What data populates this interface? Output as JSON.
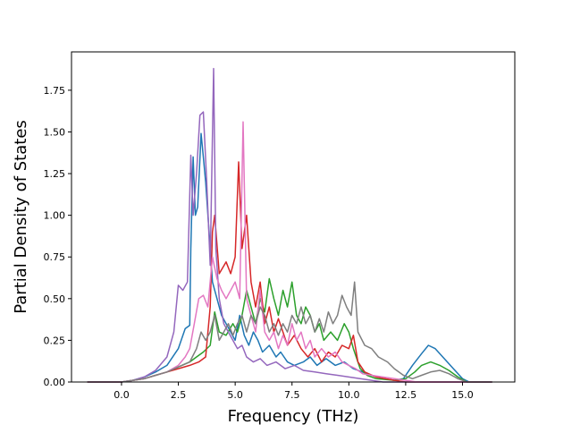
{
  "chart_data": {
    "type": "line",
    "title": "",
    "xlabel": "Frequency (THz)",
    "ylabel": "Partial Density of States",
    "xlim": [
      -2.2,
      17.3
    ],
    "ylim": [
      0,
      1.98
    ],
    "xticks": [
      0,
      2.5,
      5,
      7.5,
      10,
      12.5,
      15
    ],
    "xtick_labels": [
      "0.0",
      "2.5",
      "5.0",
      "7.5",
      "10.0",
      "12.5",
      "15.0"
    ],
    "yticks": [
      0,
      0.25,
      0.5,
      0.75,
      1.0,
      1.25,
      1.5,
      1.75
    ],
    "ytick_labels": [
      "0.00",
      "0.25",
      "0.50",
      "0.75",
      "1.00",
      "1.25",
      "1.50",
      "1.75"
    ],
    "grid": false,
    "series": [
      {
        "color": "#1f77b4",
        "points": [
          [
            -1.5,
            0
          ],
          [
            0,
            0
          ],
          [
            0.5,
            0.01
          ],
          [
            1,
            0.03
          ],
          [
            1.5,
            0.06
          ],
          [
            2,
            0.1
          ],
          [
            2.5,
            0.2
          ],
          [
            2.8,
            0.32
          ],
          [
            3.0,
            0.34
          ],
          [
            3.05,
            0.8
          ],
          [
            3.15,
            1.35
          ],
          [
            3.25,
            1.0
          ],
          [
            3.35,
            1.05
          ],
          [
            3.5,
            1.49
          ],
          [
            3.6,
            1.35
          ],
          [
            3.7,
            1.2
          ],
          [
            3.9,
            0.8
          ],
          [
            4.0,
            0.6
          ],
          [
            4.2,
            0.5
          ],
          [
            4.4,
            0.4
          ],
          [
            4.6,
            0.35
          ],
          [
            4.8,
            0.3
          ],
          [
            5.0,
            0.25
          ],
          [
            5.2,
            0.4
          ],
          [
            5.4,
            0.28
          ],
          [
            5.6,
            0.22
          ],
          [
            5.8,
            0.3
          ],
          [
            6.0,
            0.25
          ],
          [
            6.2,
            0.18
          ],
          [
            6.5,
            0.22
          ],
          [
            6.8,
            0.15
          ],
          [
            7.0,
            0.18
          ],
          [
            7.3,
            0.12
          ],
          [
            7.6,
            0.1
          ],
          [
            8.0,
            0.12
          ],
          [
            8.3,
            0.15
          ],
          [
            8.6,
            0.1
          ],
          [
            9.0,
            0.14
          ],
          [
            9.4,
            0.1
          ],
          [
            9.8,
            0.12
          ],
          [
            10.2,
            0.08
          ],
          [
            10.6,
            0.06
          ],
          [
            11,
            0.04
          ],
          [
            11.5,
            0.02
          ],
          [
            12,
            0.01
          ],
          [
            12.4,
            0.02
          ],
          [
            12.8,
            0.1
          ],
          [
            13.2,
            0.17
          ],
          [
            13.5,
            0.22
          ],
          [
            13.8,
            0.2
          ],
          [
            14.2,
            0.14
          ],
          [
            14.6,
            0.08
          ],
          [
            15.0,
            0.02
          ],
          [
            15.3,
            0
          ],
          [
            16.3,
            0
          ]
        ]
      },
      {
        "color": "#2ca02c",
        "points": [
          [
            -1.5,
            0
          ],
          [
            0,
            0
          ],
          [
            0.5,
            0.01
          ],
          [
            1,
            0.02
          ],
          [
            1.5,
            0.04
          ],
          [
            2,
            0.06
          ],
          [
            2.5,
            0.09
          ],
          [
            3.0,
            0.12
          ],
          [
            3.3,
            0.15
          ],
          [
            3.6,
            0.18
          ],
          [
            3.9,
            0.22
          ],
          [
            4.1,
            0.42
          ],
          [
            4.3,
            0.3
          ],
          [
            4.6,
            0.28
          ],
          [
            4.9,
            0.35
          ],
          [
            5.1,
            0.3
          ],
          [
            5.3,
            0.4
          ],
          [
            5.5,
            0.55
          ],
          [
            5.7,
            0.45
          ],
          [
            5.9,
            0.35
          ],
          [
            6.1,
            0.5
          ],
          [
            6.3,
            0.42
          ],
          [
            6.5,
            0.62
          ],
          [
            6.7,
            0.5
          ],
          [
            6.9,
            0.4
          ],
          [
            7.1,
            0.55
          ],
          [
            7.3,
            0.45
          ],
          [
            7.5,
            0.6
          ],
          [
            7.7,
            0.4
          ],
          [
            7.9,
            0.35
          ],
          [
            8.1,
            0.45
          ],
          [
            8.3,
            0.4
          ],
          [
            8.5,
            0.3
          ],
          [
            8.7,
            0.35
          ],
          [
            8.9,
            0.25
          ],
          [
            9.2,
            0.3
          ],
          [
            9.5,
            0.25
          ],
          [
            9.8,
            0.35
          ],
          [
            10.0,
            0.3
          ],
          [
            10.2,
            0.2
          ],
          [
            10.5,
            0.08
          ],
          [
            10.8,
            0.04
          ],
          [
            11.2,
            0.02
          ],
          [
            12,
            0.01
          ],
          [
            12.5,
            0.02
          ],
          [
            12.9,
            0.06
          ],
          [
            13.2,
            0.1
          ],
          [
            13.6,
            0.12
          ],
          [
            14.0,
            0.1
          ],
          [
            14.4,
            0.07
          ],
          [
            14.8,
            0.03
          ],
          [
            15.2,
            0
          ],
          [
            16.3,
            0
          ]
        ]
      },
      {
        "color": "#d62728",
        "points": [
          [
            -1.5,
            0
          ],
          [
            0,
            0
          ],
          [
            0.5,
            0.01
          ],
          [
            1,
            0.02
          ],
          [
            1.5,
            0.04
          ],
          [
            2,
            0.06
          ],
          [
            2.5,
            0.08
          ],
          [
            3.0,
            0.1
          ],
          [
            3.4,
            0.12
          ],
          [
            3.7,
            0.15
          ],
          [
            3.9,
            0.45
          ],
          [
            4.0,
            0.9
          ],
          [
            4.1,
            1.0
          ],
          [
            4.3,
            0.65
          ],
          [
            4.6,
            0.72
          ],
          [
            4.8,
            0.65
          ],
          [
            5.0,
            0.75
          ],
          [
            5.15,
            1.32
          ],
          [
            5.3,
            0.8
          ],
          [
            5.5,
            1.0
          ],
          [
            5.7,
            0.6
          ],
          [
            5.9,
            0.45
          ],
          [
            6.1,
            0.6
          ],
          [
            6.3,
            0.35
          ],
          [
            6.5,
            0.45
          ],
          [
            6.7,
            0.3
          ],
          [
            6.9,
            0.38
          ],
          [
            7.1,
            0.3
          ],
          [
            7.3,
            0.22
          ],
          [
            7.6,
            0.28
          ],
          [
            7.9,
            0.2
          ],
          [
            8.2,
            0.15
          ],
          [
            8.5,
            0.2
          ],
          [
            8.8,
            0.12
          ],
          [
            9.1,
            0.18
          ],
          [
            9.4,
            0.15
          ],
          [
            9.7,
            0.22
          ],
          [
            10.0,
            0.2
          ],
          [
            10.2,
            0.28
          ],
          [
            10.4,
            0.12
          ],
          [
            10.7,
            0.06
          ],
          [
            11.2,
            0.03
          ],
          [
            12,
            0.01
          ],
          [
            12.5,
            0
          ],
          [
            16.3,
            0
          ]
        ]
      },
      {
        "color": "#9467bd",
        "points": [
          [
            -1.5,
            0
          ],
          [
            0,
            0
          ],
          [
            0.5,
            0.01
          ],
          [
            1,
            0.03
          ],
          [
            1.5,
            0.07
          ],
          [
            2,
            0.15
          ],
          [
            2.3,
            0.3
          ],
          [
            2.5,
            0.58
          ],
          [
            2.7,
            0.55
          ],
          [
            2.9,
            0.6
          ],
          [
            3.05,
            1.36
          ],
          [
            3.15,
            1.0
          ],
          [
            3.3,
            1.25
          ],
          [
            3.45,
            1.6
          ],
          [
            3.6,
            1.62
          ],
          [
            3.75,
            1.2
          ],
          [
            3.9,
            0.7
          ],
          [
            4.05,
            1.88
          ],
          [
            4.15,
            0.8
          ],
          [
            4.3,
            0.5
          ],
          [
            4.5,
            0.35
          ],
          [
            4.7,
            0.3
          ],
          [
            4.9,
            0.25
          ],
          [
            5.1,
            0.2
          ],
          [
            5.3,
            0.22
          ],
          [
            5.5,
            0.15
          ],
          [
            5.8,
            0.12
          ],
          [
            6.1,
            0.14
          ],
          [
            6.4,
            0.1
          ],
          [
            6.8,
            0.12
          ],
          [
            7.2,
            0.08
          ],
          [
            7.6,
            0.1
          ],
          [
            8.0,
            0.07
          ],
          [
            8.5,
            0.06
          ],
          [
            9.0,
            0.05
          ],
          [
            9.5,
            0.04
          ],
          [
            10.0,
            0.03
          ],
          [
            10.5,
            0.02
          ],
          [
            11,
            0.01
          ],
          [
            11.5,
            0
          ],
          [
            16.3,
            0
          ]
        ]
      },
      {
        "color": "#e377c2",
        "points": [
          [
            -1.5,
            0
          ],
          [
            0,
            0
          ],
          [
            0.5,
            0.01
          ],
          [
            1,
            0.02
          ],
          [
            1.5,
            0.04
          ],
          [
            2,
            0.06
          ],
          [
            2.5,
            0.1
          ],
          [
            2.8,
            0.15
          ],
          [
            3.0,
            0.2
          ],
          [
            3.2,
            0.35
          ],
          [
            3.4,
            0.5
          ],
          [
            3.6,
            0.52
          ],
          [
            3.8,
            0.45
          ],
          [
            4.0,
            0.75
          ],
          [
            4.2,
            0.62
          ],
          [
            4.4,
            0.55
          ],
          [
            4.6,
            0.5
          ],
          [
            4.8,
            0.55
          ],
          [
            5.0,
            0.6
          ],
          [
            5.2,
            0.5
          ],
          [
            5.35,
            1.56
          ],
          [
            5.5,
            0.5
          ],
          [
            5.7,
            0.4
          ],
          [
            5.9,
            0.3
          ],
          [
            6.1,
            0.55
          ],
          [
            6.3,
            0.3
          ],
          [
            6.5,
            0.25
          ],
          [
            6.7,
            0.3
          ],
          [
            6.9,
            0.2
          ],
          [
            7.1,
            0.28
          ],
          [
            7.3,
            0.22
          ],
          [
            7.5,
            0.35
          ],
          [
            7.7,
            0.25
          ],
          [
            7.9,
            0.3
          ],
          [
            8.1,
            0.2
          ],
          [
            8.3,
            0.25
          ],
          [
            8.5,
            0.15
          ],
          [
            8.8,
            0.2
          ],
          [
            9.1,
            0.15
          ],
          [
            9.4,
            0.18
          ],
          [
            9.7,
            0.12
          ],
          [
            10.0,
            0.1
          ],
          [
            10.3,
            0.08
          ],
          [
            10.6,
            0.05
          ],
          [
            11,
            0.04
          ],
          [
            11.5,
            0.03
          ],
          [
            12.0,
            0.02
          ],
          [
            12.5,
            0.01
          ],
          [
            13,
            0
          ],
          [
            16.3,
            0
          ]
        ]
      },
      {
        "color": "#7f7f7f",
        "points": [
          [
            -1.5,
            0
          ],
          [
            0,
            0
          ],
          [
            0.5,
            0.01
          ],
          [
            1,
            0.02
          ],
          [
            1.5,
            0.04
          ],
          [
            2,
            0.06
          ],
          [
            2.5,
            0.09
          ],
          [
            3.0,
            0.12
          ],
          [
            3.3,
            0.2
          ],
          [
            3.5,
            0.3
          ],
          [
            3.7,
            0.25
          ],
          [
            3.9,
            0.3
          ],
          [
            4.1,
            0.4
          ],
          [
            4.3,
            0.25
          ],
          [
            4.5,
            0.3
          ],
          [
            4.7,
            0.35
          ],
          [
            4.9,
            0.28
          ],
          [
            5.1,
            0.35
          ],
          [
            5.3,
            0.4
          ],
          [
            5.5,
            0.3
          ],
          [
            5.7,
            0.4
          ],
          [
            5.9,
            0.35
          ],
          [
            6.1,
            0.45
          ],
          [
            6.3,
            0.4
          ],
          [
            6.5,
            0.3
          ],
          [
            6.7,
            0.35
          ],
          [
            6.9,
            0.28
          ],
          [
            7.1,
            0.35
          ],
          [
            7.3,
            0.3
          ],
          [
            7.5,
            0.4
          ],
          [
            7.7,
            0.35
          ],
          [
            7.9,
            0.45
          ],
          [
            8.1,
            0.35
          ],
          [
            8.3,
            0.4
          ],
          [
            8.5,
            0.3
          ],
          [
            8.7,
            0.38
          ],
          [
            8.9,
            0.3
          ],
          [
            9.1,
            0.42
          ],
          [
            9.3,
            0.35
          ],
          [
            9.5,
            0.4
          ],
          [
            9.7,
            0.52
          ],
          [
            9.9,
            0.45
          ],
          [
            10.1,
            0.4
          ],
          [
            10.25,
            0.6
          ],
          [
            10.4,
            0.3
          ],
          [
            10.7,
            0.22
          ],
          [
            11.0,
            0.2
          ],
          [
            11.3,
            0.15
          ],
          [
            11.7,
            0.12
          ],
          [
            12.0,
            0.08
          ],
          [
            12.4,
            0.04
          ],
          [
            12.8,
            0.02
          ],
          [
            13.2,
            0.04
          ],
          [
            13.6,
            0.06
          ],
          [
            14.0,
            0.07
          ],
          [
            14.4,
            0.05
          ],
          [
            14.8,
            0.02
          ],
          [
            15.2,
            0
          ],
          [
            16.3,
            0
          ]
        ]
      }
    ]
  }
}
